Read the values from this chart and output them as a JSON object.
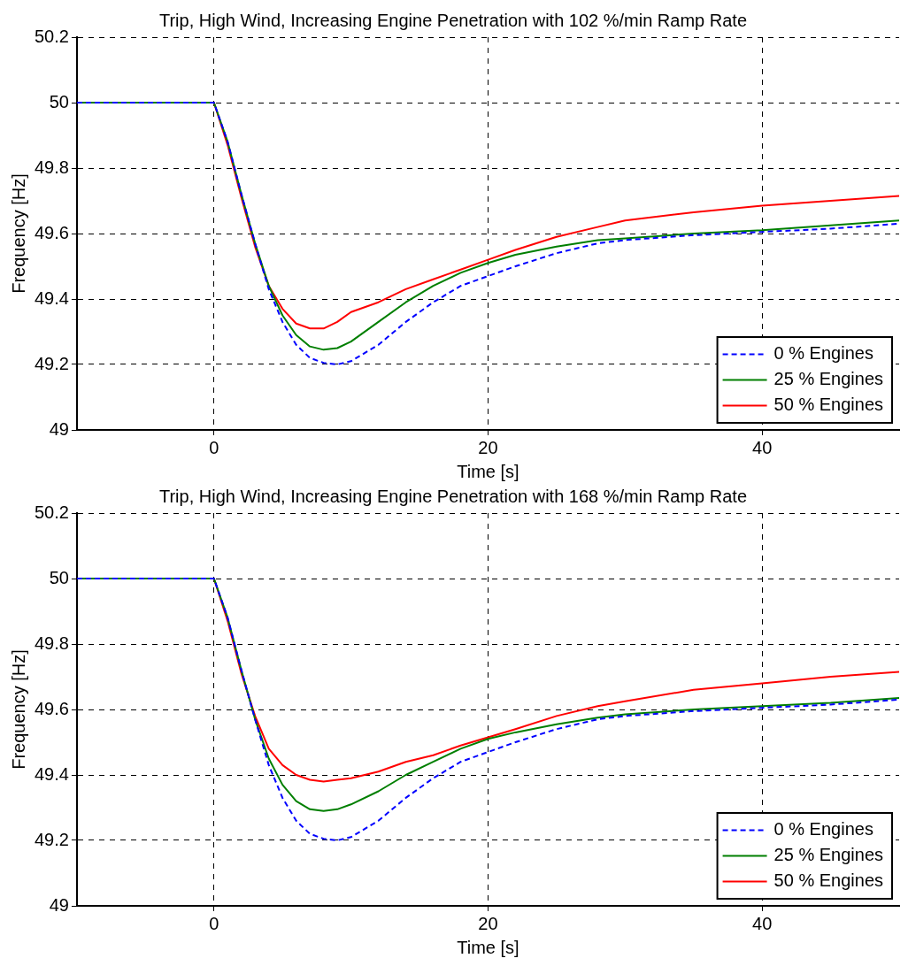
{
  "chart_data": [
    {
      "type": "line",
      "title": "Trip, High Wind, Increasing Engine Penetration with 102 %/min Ramp Rate",
      "xlabel": "Time [s]",
      "ylabel": "Frequency [Hz]",
      "xlim": [
        -10,
        50
      ],
      "xticks": [
        0,
        20,
        40
      ],
      "ylim": [
        49,
        50.2
      ],
      "yticks": [
        49,
        49.2,
        49.4,
        49.6,
        49.8,
        50,
        50.2
      ],
      "grid": true,
      "legend": "bottom right",
      "marker": "none",
      "x": [
        -10,
        0,
        1,
        2,
        3,
        4,
        5,
        6,
        7,
        8,
        9,
        10,
        12,
        14,
        16,
        18,
        20,
        22,
        25,
        28,
        30,
        35,
        40,
        45,
        50
      ],
      "series": [
        {
          "name": "0 % Engines",
          "color": "#0000ff",
          "line_style": "dashed",
          "values": [
            50,
            50,
            49.88,
            49.72,
            49.57,
            49.43,
            49.33,
            49.26,
            49.22,
            49.205,
            49.2,
            49.21,
            49.26,
            49.33,
            49.39,
            49.44,
            49.47,
            49.5,
            49.54,
            49.57,
            49.58,
            49.595,
            49.605,
            49.615,
            49.63
          ]
        },
        {
          "name": "25 % Engines",
          "color": "#007f00",
          "line_style": "solid",
          "values": [
            50,
            50,
            49.88,
            49.72,
            49.57,
            49.44,
            49.35,
            49.29,
            49.255,
            49.245,
            49.25,
            49.27,
            49.33,
            49.39,
            49.44,
            49.48,
            49.51,
            49.535,
            49.56,
            49.58,
            49.585,
            49.6,
            49.61,
            49.625,
            49.64
          ]
        },
        {
          "name": "50 % Engines",
          "color": "#ff0000",
          "line_style": "solid",
          "values": [
            50,
            50,
            49.87,
            49.71,
            49.56,
            49.44,
            49.37,
            49.325,
            49.31,
            49.31,
            49.33,
            49.36,
            49.39,
            49.43,
            49.46,
            49.49,
            49.52,
            49.55,
            49.59,
            49.62,
            49.64,
            49.665,
            49.685,
            49.7,
            49.715
          ]
        }
      ]
    },
    {
      "type": "line",
      "title": "Trip, High Wind, Increasing Engine Penetration with 168 %/min Ramp Rate",
      "xlabel": "Time [s]",
      "ylabel": "Frequency [Hz]",
      "xlim": [
        -10,
        50
      ],
      "xticks": [
        0,
        20,
        40
      ],
      "ylim": [
        49,
        50.2
      ],
      "yticks": [
        49,
        49.2,
        49.4,
        49.6,
        49.8,
        50,
        50.2
      ],
      "grid": true,
      "legend": "bottom right",
      "marker": "none",
      "x": [
        -10,
        0,
        1,
        2,
        3,
        4,
        5,
        6,
        7,
        8,
        9,
        10,
        12,
        14,
        16,
        18,
        20,
        22,
        25,
        28,
        30,
        35,
        40,
        45,
        50
      ],
      "series": [
        {
          "name": "0 % Engines",
          "color": "#0000ff",
          "line_style": "dashed",
          "values": [
            50,
            50,
            49.88,
            49.72,
            49.57,
            49.43,
            49.33,
            49.26,
            49.22,
            49.205,
            49.2,
            49.21,
            49.26,
            49.33,
            49.39,
            49.44,
            49.47,
            49.5,
            49.54,
            49.57,
            49.58,
            49.595,
            49.605,
            49.615,
            49.63
          ]
        },
        {
          "name": "25 % Engines",
          "color": "#007f00",
          "line_style": "solid",
          "values": [
            50,
            50,
            49.88,
            49.72,
            49.57,
            49.45,
            49.37,
            49.32,
            49.295,
            49.29,
            49.295,
            49.31,
            49.35,
            49.4,
            49.44,
            49.48,
            49.51,
            49.53,
            49.555,
            49.575,
            49.585,
            49.6,
            49.61,
            49.62,
            49.635
          ]
        },
        {
          "name": "50 % Engines",
          "color": "#ff0000",
          "line_style": "solid",
          "values": [
            50,
            50,
            49.87,
            49.71,
            49.58,
            49.48,
            49.43,
            49.4,
            49.385,
            49.38,
            49.385,
            49.39,
            49.41,
            49.44,
            49.46,
            49.49,
            49.515,
            49.54,
            49.58,
            49.61,
            49.625,
            49.66,
            49.68,
            49.7,
            49.715
          ]
        }
      ]
    }
  ]
}
